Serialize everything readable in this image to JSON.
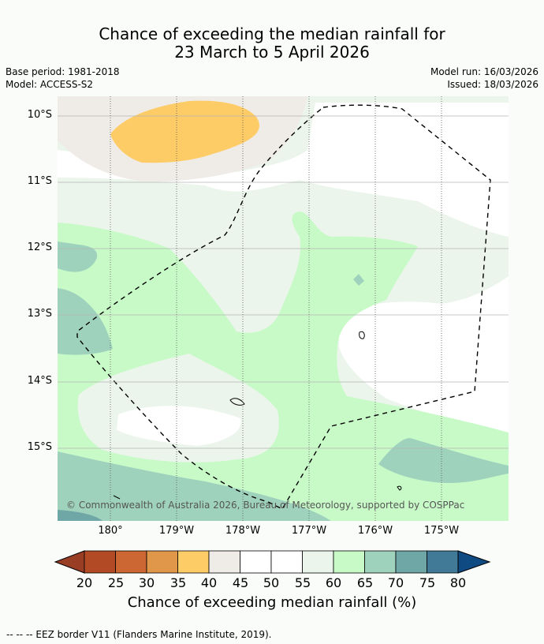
{
  "title_line1": "Chance of exceeding the median rainfall for",
  "title_line2": "23 March to 5 April 2026",
  "base_period": "Base period: 1981-2018",
  "model": "Model: ACCESS-S2",
  "model_run": "Model run: 16/03/2026",
  "issued": "Issued: 18/03/2026",
  "lat_labels": [
    "10°S",
    "11°S",
    "12°S",
    "13°S",
    "14°S",
    "15°S"
  ],
  "lon_labels": [
    "180°",
    "179°W",
    "178°W",
    "177°W",
    "176°W",
    "175°W"
  ],
  "copyright": "© Commonwealth of Australia 2026, Bureau of Meteorology, supported by COSPPac",
  "colorbar": {
    "ticks": [
      "20",
      "25",
      "30",
      "35",
      "40",
      "45",
      "50",
      "55",
      "60",
      "65",
      "70",
      "75",
      "80"
    ],
    "colors": [
      "#b34a26",
      "#cc6632",
      "#e0974a",
      "#fecc66",
      "#efebe6",
      "#ffffff",
      "#ffffff",
      "#ebf5eb",
      "#c8fac8",
      "#9fd2bd",
      "#6fa6a6",
      "#407a96"
    ],
    "low_extend_color": "#9a3d25",
    "high_extend_color": "#0f4b82",
    "label": "Chance of exceeding median rainfall (%)"
  },
  "eez_note": "--  --  -- EEZ border V11 (Flanders Marine Institute, 2019)."
}
